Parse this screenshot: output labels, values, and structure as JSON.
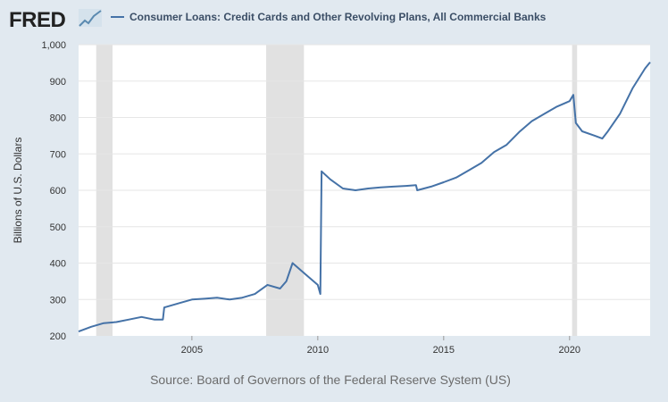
{
  "header": {
    "logo_text": "FRED",
    "logo_icon": "line-chart-icon",
    "legend_label": "Consumer Loans: Credit Cards and Other Revolving Plans, All Commercial Banks"
  },
  "source_note": "Source: Board of Governors of the Federal Reserve System (US)",
  "colors": {
    "background": "#e1e9f0",
    "plot_bg": "#ffffff",
    "line": "#4572a7",
    "recession": "#e1e1e1",
    "grid": "#e6e6e6"
  },
  "chart_data": {
    "type": "line",
    "title": "Consumer Loans: Credit Cards and Other Revolving Plans, All Commercial Banks",
    "ylabel": "Billions of U.S. Dollars",
    "xlabel": "",
    "xlim": [
      2000.5,
      2023.2
    ],
    "ylim": [
      200,
      1000
    ],
    "yticks": [
      200,
      300,
      400,
      500,
      600,
      700,
      800,
      900,
      1000
    ],
    "ytick_labels": [
      "200",
      "300",
      "400",
      "500",
      "600",
      "700",
      "800",
      "900",
      "1,000"
    ],
    "xticks": [
      2005,
      2010,
      2015,
      2020
    ],
    "xtick_labels": [
      "2005",
      "2010",
      "2015",
      "2020"
    ],
    "grid": true,
    "legend": "top",
    "recessions": [
      [
        2001.2,
        2001.85
      ],
      [
        2007.95,
        2009.45
      ],
      [
        2020.1,
        2020.3
      ]
    ],
    "series": [
      {
        "name": "Consumer Loans: Credit Cards and Other Revolving Plans, All Commercial Banks",
        "x": [
          2000.5,
          2001.0,
          2001.5,
          2002.0,
          2002.5,
          2003.0,
          2003.5,
          2003.85,
          2003.9,
          2004.5,
          2005.0,
          2005.5,
          2006.0,
          2006.5,
          2007.0,
          2007.5,
          2008.0,
          2008.5,
          2008.75,
          2009.0,
          2009.5,
          2010.0,
          2010.1,
          2010.15,
          2010.5,
          2011.0,
          2011.5,
          2012.0,
          2012.5,
          2013.0,
          2013.5,
          2013.9,
          2013.95,
          2014.5,
          2015.0,
          2015.5,
          2016.0,
          2016.5,
          2017.0,
          2017.5,
          2018.0,
          2018.5,
          2019.0,
          2019.5,
          2020.0,
          2020.15,
          2020.25,
          2020.5,
          2021.0,
          2021.3,
          2021.5,
          2022.0,
          2022.5,
          2023.0,
          2023.2
        ],
        "values": [
          212,
          225,
          235,
          238,
          245,
          252,
          245,
          245,
          278,
          290,
          300,
          302,
          305,
          300,
          305,
          315,
          340,
          330,
          350,
          400,
          370,
          340,
          315,
          652,
          630,
          605,
          600,
          605,
          608,
          610,
          612,
          614,
          600,
          610,
          622,
          635,
          655,
          675,
          705,
          725,
          760,
          790,
          810,
          830,
          845,
          862,
          785,
          762,
          750,
          742,
          760,
          810,
          880,
          935,
          952
        ]
      }
    ]
  }
}
